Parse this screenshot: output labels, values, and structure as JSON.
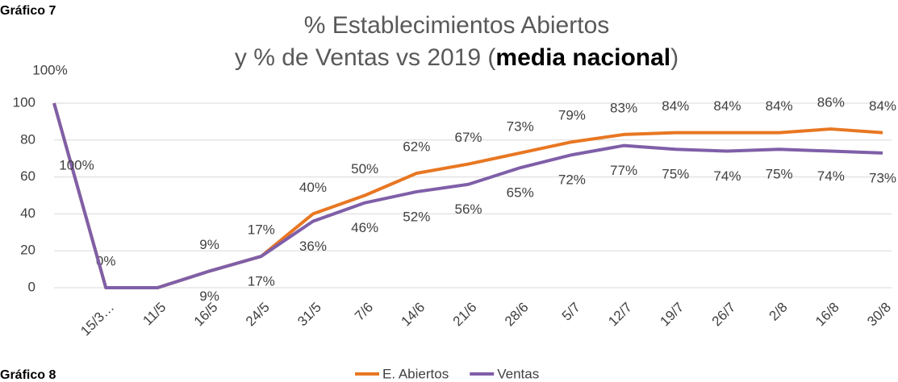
{
  "chart_data": {
    "type": "line",
    "title": {
      "line1": "% Establecimientos Abiertos",
      "line2_pre": "y % de Ventas vs 2019 (",
      "line2_bold": "media nacional",
      "line2_post": ")"
    },
    "annotations": [
      "Gráfico 7",
      "100%",
      "Gráfico 8"
    ],
    "categories": [
      null,
      "15/3…",
      "11/5",
      "16/5",
      "24/5",
      "31/5",
      "7/6",
      "14/6",
      "21/6",
      "28/6",
      "5/7",
      "12/7",
      "19/7",
      "26/7",
      "2/8",
      "16/8",
      "30/8"
    ],
    "series": [
      {
        "name": "E. Abiertos",
        "color": "#e87722",
        "values": [
          100,
          0,
          0,
          9,
          17,
          40,
          50,
          62,
          67,
          73,
          79,
          83,
          84,
          84,
          84,
          86,
          84
        ],
        "value_labels": [
          null,
          "0%",
          null,
          "9%",
          "17%",
          "40%",
          "50%",
          "62%",
          "67%",
          "73%",
          "79%",
          "83%",
          "84%",
          "84%",
          "84%",
          "86%",
          "84%"
        ]
      },
      {
        "name": "Ventas",
        "color": "#7f5fa8",
        "values": [
          100,
          0,
          0,
          9,
          17,
          36,
          46,
          52,
          56,
          65,
          72,
          77,
          75,
          74,
          75,
          74,
          73
        ],
        "value_labels": [
          "100%",
          null,
          null,
          "9%",
          "17%",
          "36%",
          "46%",
          "52%",
          "56%",
          "65%",
          "72%",
          "77%",
          "75%",
          "74%",
          "75%",
          "74%",
          "73%"
        ]
      }
    ],
    "ylim": [
      0,
      100
    ],
    "yticks": [
      0,
      20,
      40,
      60,
      80,
      100
    ],
    "grid": true,
    "legend": "bottom"
  }
}
